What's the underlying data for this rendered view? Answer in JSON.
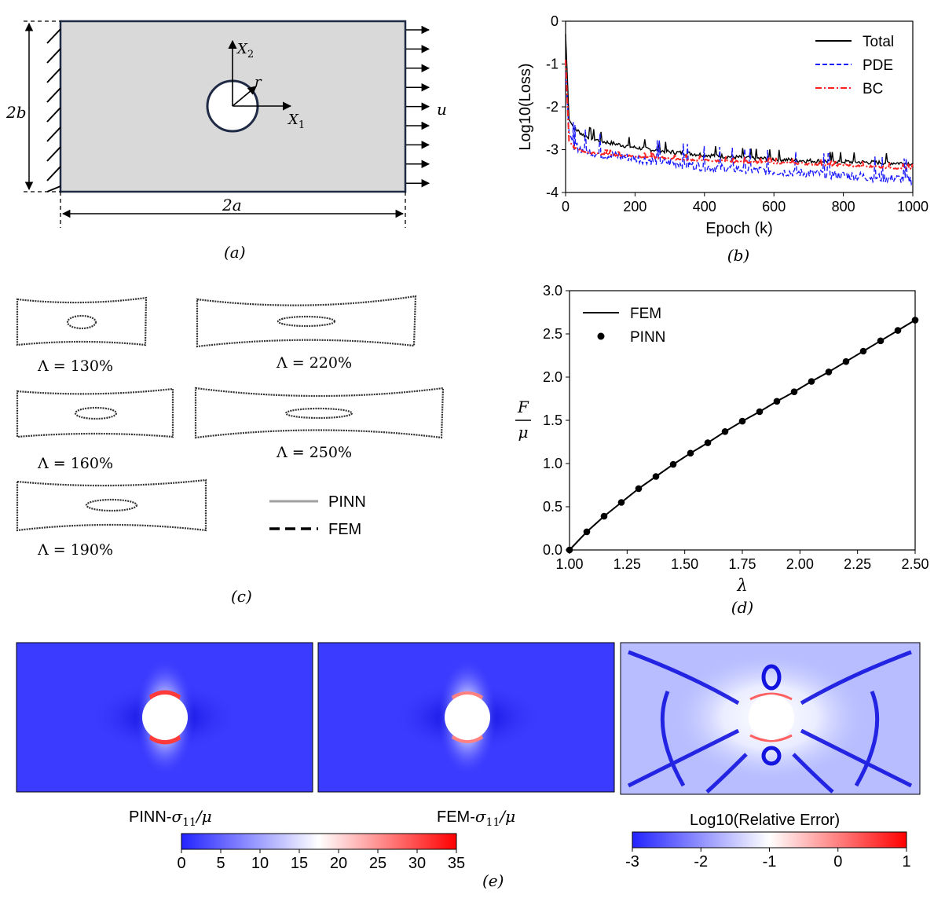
{
  "panel_a": {
    "caption": "(a)",
    "label_2b": "2b",
    "label_2a": "2a",
    "label_u": "u",
    "label_r": "r",
    "label_x1": "X",
    "label_x1_sub": "1",
    "label_x2": "X",
    "label_x2_sub": "2"
  },
  "panel_c": {
    "caption": "(c)",
    "shapes": [
      {
        "label": "Λ = 130%"
      },
      {
        "label": "Λ = 220%"
      },
      {
        "label": "Λ = 160%"
      },
      {
        "label": "Λ = 250%"
      },
      {
        "label": "Λ = 190%"
      }
    ],
    "legend": [
      {
        "name": "PINN",
        "color": "#a0a0a0"
      },
      {
        "name": "FEM",
        "color": "#000000"
      }
    ]
  },
  "panel_e": {
    "caption": "(e)",
    "map_labels": [
      {
        "text": "PINN-",
        "sym": "σ",
        "sub": "11",
        "tail": "/μ"
      },
      {
        "text": "FEM-",
        "sym": "σ",
        "sub": "11",
        "tail": "/μ"
      }
    ],
    "error_label": "Log10(Relative Error)",
    "colorbar1": {
      "ticks": [
        "0",
        "5",
        "10",
        "15",
        "20",
        "25",
        "30",
        "35"
      ],
      "low": "#2323ff",
      "mid": "#ffffff",
      "high": "#ff0000"
    },
    "colorbar2": {
      "ticks": [
        "-3",
        "-2",
        "-1",
        "0",
        "1"
      ],
      "low": "#2323ff",
      "mid": "#ffffff",
      "high": "#ff0000"
    }
  },
  "chart_data": [
    {
      "type": "line",
      "panel": "(b)",
      "title": "",
      "xlabel": "Epoch (k)",
      "ylabel": "Log10(Loss)",
      "xlim": [
        0,
        1000
      ],
      "ylim": [
        -4,
        0
      ],
      "xticks": [
        "0",
        "200",
        "400",
        "600",
        "800",
        "1000"
      ],
      "yticks": [
        "0",
        "-1",
        "-2",
        "-3",
        "-4"
      ],
      "legend_position": "top-right",
      "x": [
        0,
        10,
        25,
        50,
        100,
        200,
        300,
        400,
        500,
        600,
        700,
        800,
        900,
        1000
      ],
      "series": [
        {
          "name": "Total",
          "color": "#000000",
          "dash": "solid",
          "values": [
            -0.3,
            -2.3,
            -2.5,
            -2.65,
            -2.8,
            -2.95,
            -3.05,
            -3.12,
            -3.18,
            -3.22,
            -3.26,
            -3.28,
            -3.3,
            -3.32
          ]
        },
        {
          "name": "PDE",
          "color": "#1a1aff",
          "dash": "dashed",
          "values": [
            -1.2,
            -2.6,
            -2.9,
            -3.0,
            -3.1,
            -3.2,
            -3.3,
            -3.4,
            -3.45,
            -3.5,
            -3.55,
            -3.6,
            -3.65,
            -3.7
          ]
        },
        {
          "name": "BC",
          "color": "#ff2020",
          "dash": "dashdot",
          "values": [
            -0.9,
            -2.8,
            -2.95,
            -3.05,
            -3.1,
            -3.15,
            -3.2,
            -3.25,
            -3.28,
            -3.3,
            -3.33,
            -3.36,
            -3.4,
            -3.45
          ]
        }
      ]
    },
    {
      "type": "line",
      "panel": "(d)",
      "title": "",
      "xlabel": "λ",
      "ylabel_num": "F",
      "ylabel_den": "μ",
      "xlim": [
        1.0,
        2.5
      ],
      "ylim": [
        0.0,
        3.0
      ],
      "xticks": [
        "1.00",
        "1.25",
        "1.50",
        "1.75",
        "2.00",
        "2.25",
        "2.50"
      ],
      "yticks": [
        "0.0",
        "0.5",
        "1.0",
        "1.5",
        "2.0",
        "2.5",
        "3.0"
      ],
      "legend_position": "top-left",
      "series": [
        {
          "name": "FEM",
          "style": "line",
          "color": "#000000",
          "x": [
            1.0,
            1.075,
            1.15,
            1.225,
            1.3,
            1.375,
            1.45,
            1.525,
            1.6,
            1.675,
            1.75,
            1.825,
            1.9,
            1.975,
            2.05,
            2.125,
            2.2,
            2.275,
            2.35,
            2.425,
            2.5
          ],
          "values": [
            0.0,
            0.21,
            0.39,
            0.55,
            0.71,
            0.85,
            0.99,
            1.12,
            1.24,
            1.37,
            1.49,
            1.6,
            1.72,
            1.83,
            1.95,
            2.06,
            2.18,
            2.3,
            2.42,
            2.54,
            2.66
          ]
        },
        {
          "name": "PINN",
          "style": "marker",
          "color": "#000000",
          "x": [
            1.0,
            1.075,
            1.15,
            1.225,
            1.3,
            1.375,
            1.45,
            1.525,
            1.6,
            1.675,
            1.75,
            1.825,
            1.9,
            1.975,
            2.05,
            2.125,
            2.2,
            2.275,
            2.35,
            2.425,
            2.5
          ],
          "values": [
            0.0,
            0.21,
            0.39,
            0.55,
            0.71,
            0.85,
            0.99,
            1.12,
            1.24,
            1.37,
            1.49,
            1.6,
            1.72,
            1.83,
            1.95,
            2.06,
            2.18,
            2.3,
            2.42,
            2.54,
            2.66
          ]
        }
      ],
      "caption": "(d)"
    }
  ]
}
